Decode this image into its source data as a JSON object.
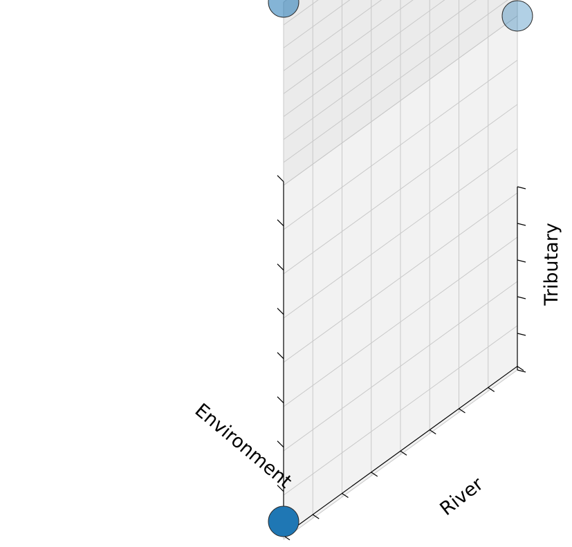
{
  "chart_data": {
    "type": "scatter",
    "projection": "3d",
    "title": "",
    "xlabel": "Environment",
    "ylabel": "River",
    "zlabel": "Tributary",
    "tick_labels_shown": false,
    "grid": true,
    "xlim": [
      0,
      1
    ],
    "ylim": [
      0,
      1
    ],
    "zlim": [
      0,
      1
    ],
    "pane_colors": [
      "#f2f2f2",
      "#ebebeb",
      "#f5f5f5"
    ],
    "points": [
      {
        "x": 1.0,
        "y": 0.0,
        "z": 0.0,
        "color": "#1f77b4",
        "alpha": 1.0
      },
      {
        "x": 0.0,
        "y": 0.0,
        "z": 1.0,
        "color": "#1f77b4",
        "alpha": 0.55
      },
      {
        "x": 0.0,
        "y": 1.0,
        "z": 0.0,
        "color": "#1f77b4",
        "alpha": 0.35
      }
    ]
  }
}
